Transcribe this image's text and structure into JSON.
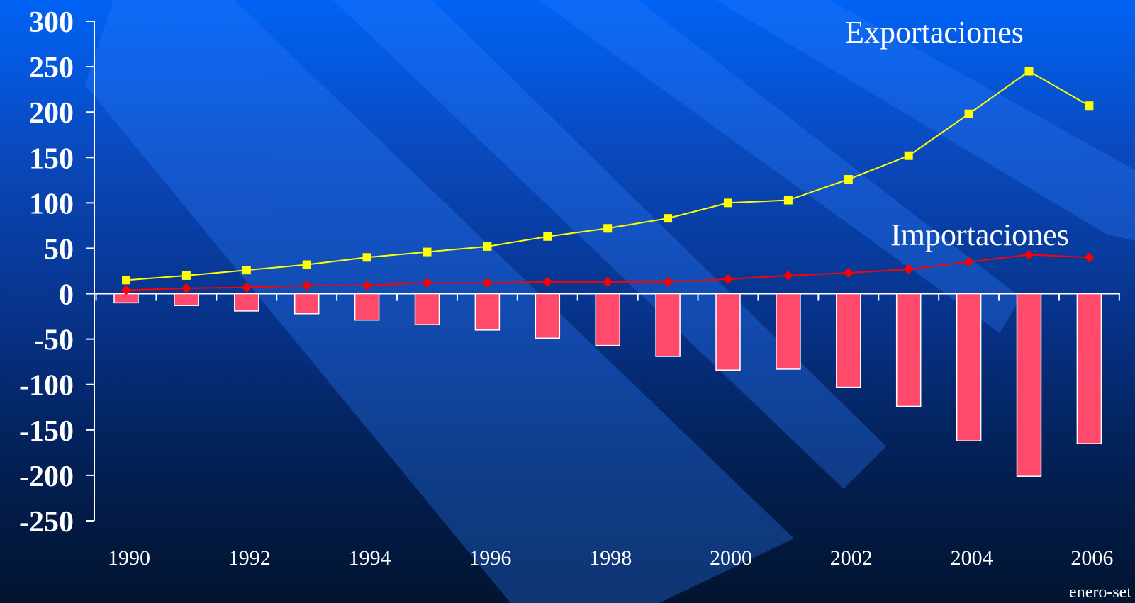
{
  "chart_data": {
    "type": "bar+line",
    "categories": [
      "1990",
      "1991",
      "1992",
      "1993",
      "1994",
      "1995",
      "1996",
      "1997",
      "1998",
      "1999",
      "2000",
      "2001",
      "2002",
      "2003",
      "2004",
      "2005",
      "2006"
    ],
    "x_tick_labels": [
      "1990",
      "1992",
      "1994",
      "1996",
      "1998",
      "2000",
      "2002",
      "2004",
      "2006"
    ],
    "x_note": "enero-set",
    "ylim": [
      -250,
      300
    ],
    "y_ticks": [
      "300",
      "250",
      "200",
      "150",
      "100",
      "50",
      "0",
      "-50",
      "-100",
      "-150",
      "-200",
      "-250"
    ],
    "grid": false,
    "series": [
      {
        "name": "Exportaciones",
        "type": "line",
        "color": "#ffff00",
        "marker": "square",
        "values": [
          15,
          20,
          26,
          32,
          40,
          46,
          52,
          63,
          72,
          83,
          100,
          103,
          126,
          152,
          198,
          245,
          207
        ]
      },
      {
        "name": "Importaciones",
        "type": "line",
        "color": "#ff0000",
        "marker": "diamond",
        "values": [
          4,
          6,
          7,
          9,
          9,
          12,
          12,
          13,
          13,
          13,
          16,
          20,
          23,
          27,
          35,
          43,
          40
        ]
      },
      {
        "type": "bar",
        "color": "#ff4a6b",
        "values": [
          -10,
          -13,
          -19,
          -22,
          -29,
          -34,
          -40,
          -49,
          -57,
          -69,
          -84,
          -83,
          -103,
          -124,
          -162,
          -201,
          -165
        ]
      }
    ]
  }
}
